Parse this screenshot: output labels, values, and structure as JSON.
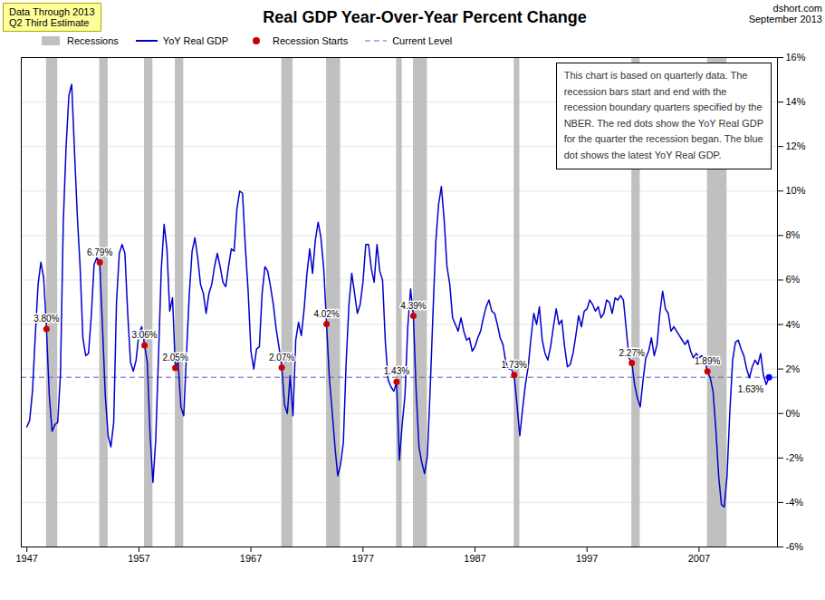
{
  "chart_data": {
    "type": "line",
    "title": "Real GDP Year-Over-Year Percent Change",
    "annotations": [
      "Data Through 2013\nQ2 Third Estimate",
      "dshort.com\nSeptember 2013",
      "This chart is based on quarterly data. The\nrecession bars start and end with the\nrecession boundary quarters specified by the\nNBER. The red dots show the YoY Real GDP\nfor the quarter the recession began. The blue\ndot shows the  latest YoY Real GDP."
    ],
    "legend": "top",
    "grid": "y",
    "xlim": [
      1946.5,
      2014.0
    ],
    "xticks": [
      1947,
      1957,
      1967,
      1977,
      1987,
      1997,
      2007
    ],
    "ylim": [
      -6,
      16
    ],
    "yticks": [
      {
        "value": -6,
        "label": "-6%"
      },
      {
        "value": -4,
        "label": "-4%"
      },
      {
        "value": -2,
        "label": "-2%"
      },
      {
        "value": 0,
        "label": "0%"
      },
      {
        "value": 2,
        "label": "2%"
      },
      {
        "value": 4,
        "label": "4%"
      },
      {
        "value": 6,
        "label": "6%"
      },
      {
        "value": 8,
        "label": "8%"
      },
      {
        "value": 10,
        "label": "10%"
      },
      {
        "value": 12,
        "label": "12%"
      },
      {
        "value": 14,
        "label": "14%"
      },
      {
        "value": 16,
        "label": "16%"
      }
    ],
    "recessions": {
      "name": "Recessions",
      "color": "#C0C0C0",
      "bars": [
        [
          1948.75,
          1949.75
        ],
        [
          1953.5,
          1954.25
        ],
        [
          1957.5,
          1958.25
        ],
        [
          1960.25,
          1961.0
        ],
        [
          1969.75,
          1970.75
        ],
        [
          1973.75,
          1975.0
        ],
        [
          1980.0,
          1980.5
        ],
        [
          1981.5,
          1982.75
        ],
        [
          1990.5,
          1991.0
        ],
        [
          2001.0,
          2001.75
        ],
        [
          2007.75,
          2009.5
        ]
      ]
    },
    "x": [
      1947,
      1947.25,
      1947.5,
      1947.75,
      1948,
      1948.25,
      1948.5,
      1948.75,
      1949,
      1949.25,
      1949.5,
      1949.75,
      1950,
      1950.25,
      1950.5,
      1950.75,
      1951,
      1951.25,
      1951.5,
      1951.75,
      1952,
      1952.25,
      1952.5,
      1952.75,
      1953,
      1953.25,
      1953.5,
      1953.75,
      1954,
      1954.25,
      1954.5,
      1954.75,
      1955,
      1955.25,
      1955.5,
      1955.75,
      1956,
      1956.25,
      1956.5,
      1956.75,
      1957,
      1957.25,
      1957.5,
      1957.75,
      1958,
      1958.25,
      1958.5,
      1958.75,
      1959,
      1959.25,
      1959.5,
      1959.75,
      1960,
      1960.25,
      1960.5,
      1960.75,
      1961,
      1961.25,
      1961.5,
      1961.75,
      1962,
      1962.25,
      1962.5,
      1962.75,
      1963,
      1963.25,
      1963.5,
      1963.75,
      1964,
      1964.25,
      1964.5,
      1964.75,
      1965,
      1965.25,
      1965.5,
      1965.75,
      1966,
      1966.25,
      1966.5,
      1966.75,
      1967,
      1967.25,
      1967.5,
      1967.75,
      1968,
      1968.25,
      1968.5,
      1968.75,
      1969,
      1969.25,
      1969.5,
      1969.75,
      1970,
      1970.25,
      1970.5,
      1970.75,
      1971,
      1971.25,
      1971.5,
      1971.75,
      1972,
      1972.25,
      1972.5,
      1972.75,
      1973,
      1973.25,
      1973.5,
      1973.75,
      1974,
      1974.25,
      1974.5,
      1974.75,
      1975,
      1975.25,
      1975.5,
      1975.75,
      1976,
      1976.25,
      1976.5,
      1976.75,
      1977,
      1977.25,
      1977.5,
      1977.75,
      1978,
      1978.25,
      1978.5,
      1978.75,
      1979,
      1979.25,
      1979.5,
      1979.75,
      1980,
      1980.25,
      1980.5,
      1980.75,
      1981,
      1981.25,
      1981.5,
      1981.75,
      1982,
      1982.25,
      1982.5,
      1982.75,
      1983,
      1983.25,
      1983.5,
      1983.75,
      1984,
      1984.25,
      1984.5,
      1984.75,
      1985,
      1985.25,
      1985.5,
      1985.75,
      1986,
      1986.25,
      1986.5,
      1986.75,
      1987,
      1987.25,
      1987.5,
      1987.75,
      1988,
      1988.25,
      1988.5,
      1988.75,
      1989,
      1989.25,
      1989.5,
      1989.75,
      1990,
      1990.25,
      1990.5,
      1990.75,
      1991,
      1991.25,
      1991.5,
      1991.75,
      1992,
      1992.25,
      1992.5,
      1992.75,
      1993,
      1993.25,
      1993.5,
      1993.75,
      1994,
      1994.25,
      1994.5,
      1994.75,
      1995,
      1995.25,
      1995.5,
      1995.75,
      1996,
      1996.25,
      1996.5,
      1996.75,
      1997,
      1997.25,
      1997.5,
      1997.75,
      1998,
      1998.25,
      1998.5,
      1998.75,
      1999,
      1999.25,
      1999.5,
      1999.75,
      2000,
      2000.25,
      2000.5,
      2000.75,
      2001,
      2001.25,
      2001.5,
      2001.75,
      2002,
      2002.25,
      2002.5,
      2002.75,
      2003,
      2003.25,
      2003.5,
      2003.75,
      2004,
      2004.25,
      2004.5,
      2004.75,
      2005,
      2005.25,
      2005.5,
      2005.75,
      2006,
      2006.25,
      2006.5,
      2006.75,
      2007,
      2007.25,
      2007.5,
      2007.75,
      2008,
      2008.25,
      2008.5,
      2008.75,
      2009,
      2009.25,
      2009.5,
      2009.75,
      2010,
      2010.25,
      2010.5,
      2010.75,
      2011,
      2011.25,
      2011.5,
      2011.75,
      2012,
      2012.25,
      2012.5,
      2012.75,
      2013,
      2013.25
    ],
    "series": [
      {
        "name": "YoY Real GDP",
        "color": "#0000CC",
        "values": [
          -0.6,
          -0.3,
          1.0,
          3.5,
          5.8,
          6.8,
          6.1,
          3.8,
          0.8,
          -0.8,
          -0.5,
          -0.4,
          1.8,
          8.6,
          12.0,
          14.3,
          14.8,
          11.8,
          8.9,
          6.6,
          3.4,
          2.6,
          2.7,
          4.4,
          6.7,
          7.0,
          6.8,
          3.9,
          0.8,
          -1.0,
          -1.5,
          -0.4,
          5.0,
          7.2,
          7.6,
          7.2,
          4.5,
          2.3,
          1.9,
          2.4,
          3.6,
          3.9,
          3.1,
          2.3,
          -1.0,
          -3.1,
          -1.2,
          2.6,
          6.5,
          8.5,
          7.4,
          4.6,
          5.2,
          2.1,
          2.3,
          0.3,
          -0.1,
          2.7,
          5.4,
          7.3,
          7.9,
          7.0,
          5.8,
          5.4,
          4.5,
          5.4,
          5.8,
          6.6,
          7.2,
          6.6,
          5.9,
          5.7,
          6.6,
          7.4,
          7.3,
          9.2,
          10.0,
          9.9,
          7.5,
          5.5,
          2.8,
          2.0,
          2.9,
          3.0,
          5.4,
          6.6,
          6.4,
          5.7,
          4.9,
          3.8,
          3.0,
          2.1,
          0.4,
          0.0,
          1.7,
          -0.1,
          3.3,
          4.1,
          3.5,
          4.7,
          6.3,
          7.4,
          6.3,
          7.8,
          8.6,
          7.9,
          6.5,
          4.0,
          1.6,
          0.1,
          -1.5,
          -2.8,
          -2.3,
          -1.3,
          2.3,
          4.9,
          6.3,
          5.4,
          4.5,
          4.9,
          5.9,
          7.6,
          7.6,
          6.5,
          5.9,
          7.6,
          6.4,
          6.0,
          3.2,
          1.5,
          1.2,
          1.0,
          1.4,
          -2.1,
          -0.5,
          0.8,
          3.9,
          5.6,
          4.4,
          1.0,
          -1.5,
          -2.2,
          -2.7,
          -1.9,
          1.1,
          4.5,
          7.7,
          9.4,
          10.2,
          8.7,
          6.6,
          5.8,
          4.3,
          4.0,
          3.7,
          4.3,
          3.7,
          3.3,
          3.4,
          2.8,
          3.0,
          3.4,
          3.7,
          4.3,
          4.8,
          5.1,
          4.6,
          4.5,
          4.0,
          3.4,
          3.1,
          2.3,
          2.0,
          2.0,
          1.7,
          0.4,
          -1.0,
          0.2,
          1.3,
          2.1,
          3.4,
          4.5,
          4.0,
          4.8,
          3.3,
          2.7,
          2.4,
          3.0,
          3.9,
          4.7,
          4.0,
          4.2,
          3.0,
          2.1,
          2.2,
          2.7,
          3.5,
          4.4,
          3.9,
          4.6,
          4.7,
          5.1,
          4.9,
          4.6,
          4.8,
          4.3,
          4.5,
          5.1,
          5.0,
          4.5,
          5.2,
          5.1,
          5.3,
          5.1,
          3.8,
          2.5,
          2.3,
          1.3,
          0.7,
          0.3,
          1.5,
          2.5,
          2.8,
          3.4,
          2.6,
          3.1,
          4.5,
          5.5,
          4.7,
          4.5,
          3.7,
          3.9,
          3.7,
          3.5,
          3.3,
          3.1,
          3.3,
          2.8,
          2.5,
          2.7,
          2.5,
          2.6,
          2.4,
          1.9,
          1.6,
          1.0,
          -0.7,
          -2.8,
          -4.1,
          -4.2,
          -2.8,
          0.1,
          2.4,
          3.2,
          3.3,
          2.9,
          2.6,
          2.0,
          1.6,
          2.1,
          2.4,
          2.2,
          2.7,
          1.7,
          1.3,
          1.63
        ]
      }
    ],
    "recession_starts": {
      "name": "Recession Starts",
      "color": "#CC0000",
      "x": [
        1948.75,
        1953.5,
        1957.5,
        1960.25,
        1969.75,
        1973.75,
        1980.0,
        1981.5,
        1990.5,
        2001.0,
        2007.75
      ],
      "values": [
        3.8,
        6.79,
        3.06,
        2.05,
        2.07,
        4.02,
        1.43,
        4.39,
        1.73,
        2.27,
        1.89
      ],
      "value_labels": [
        "3.80%",
        "6.79%",
        "3.06%",
        "2.05%",
        "2.07%",
        "4.02%",
        "1.43%",
        "4.39%",
        "1.73%",
        "2.27%",
        "1.89%"
      ]
    },
    "current_level": {
      "name": "Current Level",
      "value": 1.63,
      "color": "#6666BB",
      "line_style": "dashed"
    },
    "current_point": {
      "x": 2013.25,
      "value": 1.63,
      "label": "1.63%",
      "color": "#0000FF"
    }
  }
}
